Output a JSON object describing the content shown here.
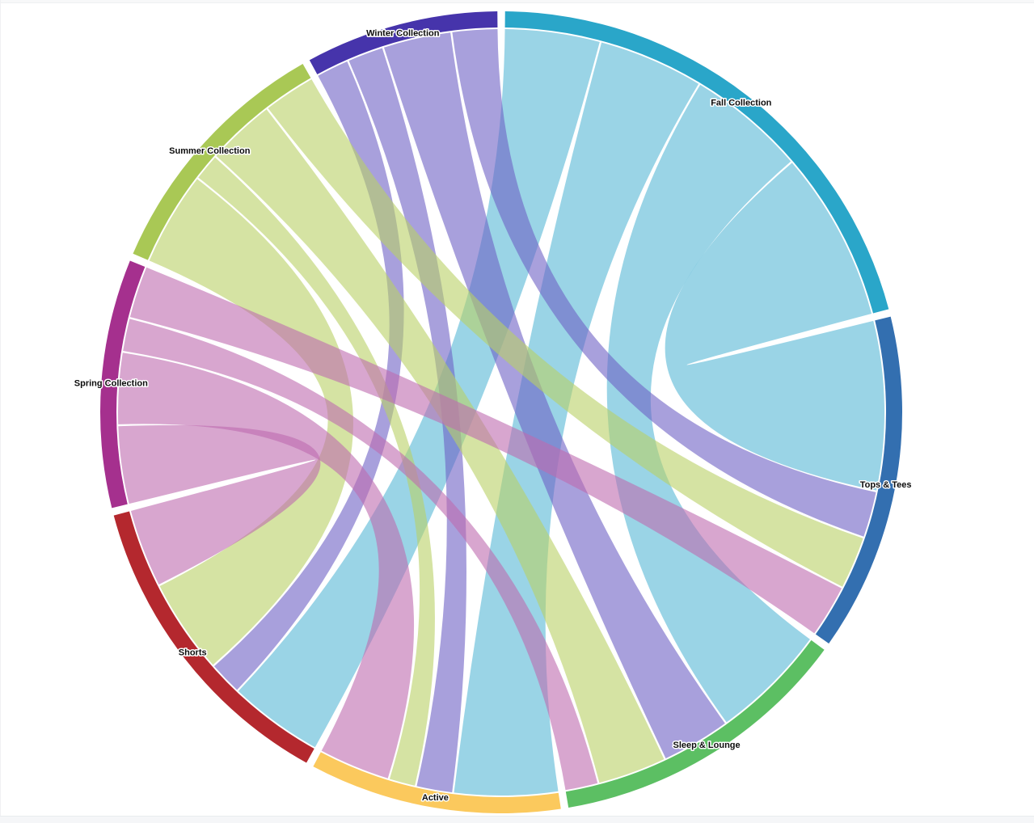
{
  "page": {
    "background": "#ffffff",
    "top_strip_color": "#f7f8f9",
    "bottom_strip_color": "#f5f6f8"
  },
  "chart_data": {
    "type": "chord",
    "legend": false,
    "grid": false,
    "groups": [
      {
        "label": "Fall Collection",
        "role": "collection",
        "arc_color": "#2aa6c9",
        "ribbon_color": "#57b7d5",
        "total": 745
      },
      {
        "label": "Tops & Tees",
        "role": "category",
        "arc_color": "#336fb0",
        "total": 490
      },
      {
        "label": "Sleep & Lounge",
        "role": "category",
        "arc_color": "#5cbf63",
        "total": 440
      },
      {
        "label": "Active",
        "role": "category",
        "arc_color": "#fbc95d",
        "total": 365
      },
      {
        "label": "Shorts",
        "role": "category",
        "arc_color": "#b4282e",
        "total": 460
      },
      {
        "label": "Spring Collection",
        "role": "collection",
        "arc_color": "#a5308e",
        "ribbon_color": "#be6baf",
        "total": 360
      },
      {
        "label": "Summer Collection",
        "role": "collection",
        "arc_color": "#a9c855",
        "ribbon_color": "#b9d066",
        "total": 370
      },
      {
        "label": "Winter Collection",
        "role": "collection",
        "arc_color": "#4634ab",
        "ribbon_color": "#6e61c5",
        "total": 280
      }
    ],
    "flows": [
      {
        "from": "Fall Collection",
        "to": "Shorts",
        "value": 145
      },
      {
        "from": "Fall Collection",
        "to": "Active",
        "value": 160
      },
      {
        "from": "Fall Collection",
        "to": "Sleep & Lounge",
        "value": 180
      },
      {
        "from": "Fall Collection",
        "to": "Tops & Tees",
        "value": 260
      },
      {
        "from": "Winter Collection",
        "to": "Shorts",
        "value": 50
      },
      {
        "from": "Winter Collection",
        "to": "Active",
        "value": 55
      },
      {
        "from": "Winter Collection",
        "to": "Sleep & Lounge",
        "value": 105
      },
      {
        "from": "Winter Collection",
        "to": "Tops & Tees",
        "value": 70
      },
      {
        "from": "Summer Collection",
        "to": "Shorts",
        "value": 145
      },
      {
        "from": "Summer Collection",
        "to": "Active",
        "value": 40
      },
      {
        "from": "Summer Collection",
        "to": "Sleep & Lounge",
        "value": 105
      },
      {
        "from": "Summer Collection",
        "to": "Tops & Tees",
        "value": 80
      },
      {
        "from": "Spring Collection",
        "to": "Shorts",
        "value": 120
      },
      {
        "from": "Spring Collection",
        "to": "Active",
        "value": 110
      },
      {
        "from": "Spring Collection",
        "to": "Sleep & Lounge",
        "value": 50
      },
      {
        "from": "Spring Collection",
        "to": "Tops & Tees",
        "value": 80
      }
    ],
    "layout": {
      "circular_order_clockwise_from_top": [
        "Fall Collection",
        "Tops & Tees",
        "Sleep & Lounge",
        "Active",
        "Shorts",
        "Spring Collection",
        "Summer Collection",
        "Winter Collection"
      ],
      "collection_ribbon_order": [
        "Shorts",
        "Active",
        "Sleep & Lounge",
        "Tops & Tees"
      ],
      "category_ribbon_order": [
        "Fall Collection",
        "Winter Collection",
        "Summer Collection",
        "Spring Collection"
      ],
      "gap_degrees": 1.1,
      "ribbon_opacity": 0.6
    }
  }
}
